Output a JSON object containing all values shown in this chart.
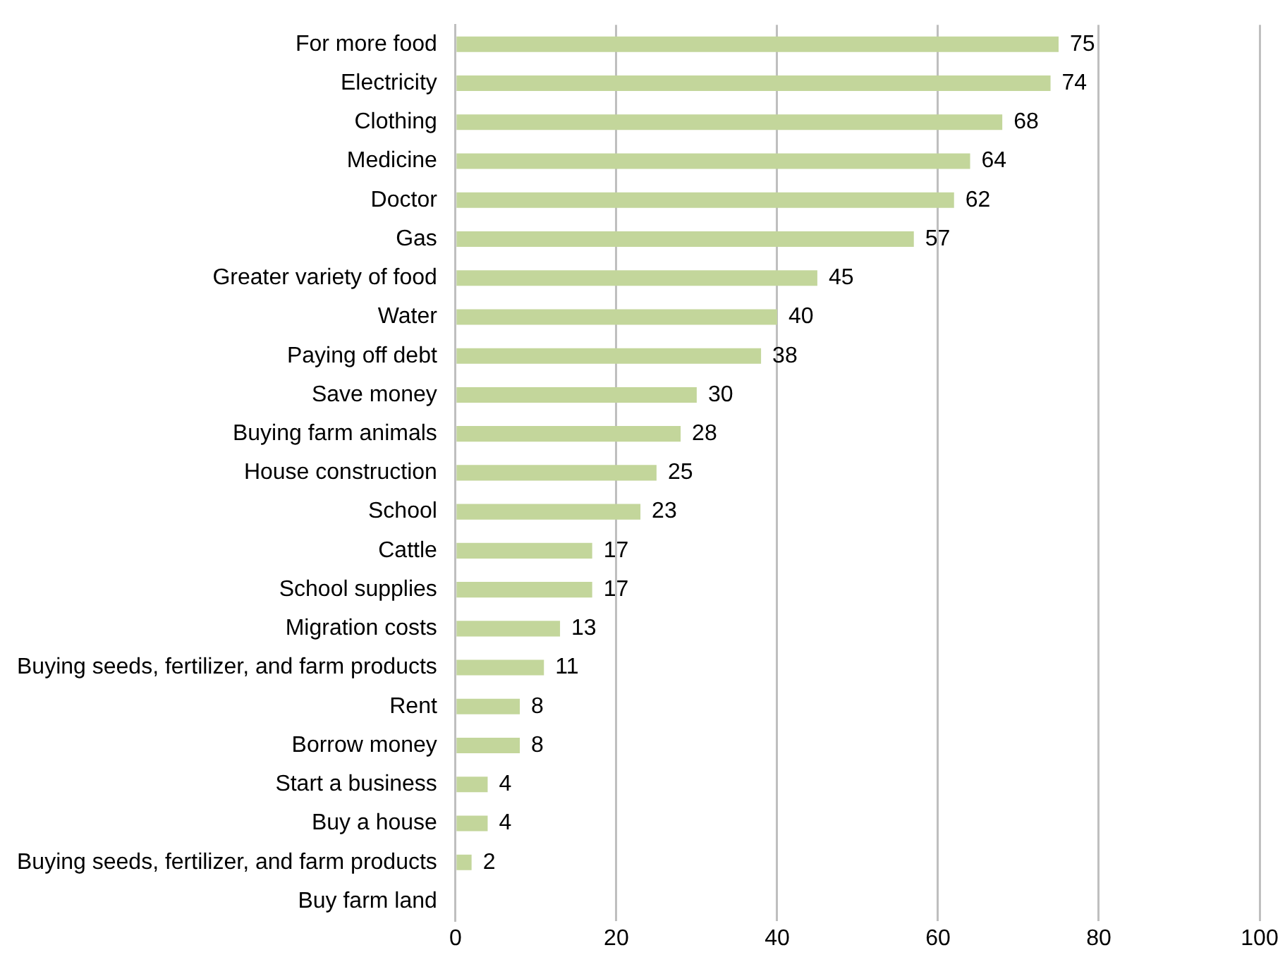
{
  "chart_data": {
    "type": "bar",
    "orientation": "horizontal",
    "categories": [
      "For more food",
      "Electricity",
      "Clothing",
      "Medicine",
      "Doctor",
      "Gas",
      "Greater variety of food",
      "Water",
      "Paying off debt",
      "Save money",
      "Buying farm animals",
      "House construction",
      "School",
      "Cattle",
      "School supplies",
      "Migration costs",
      "Buying seeds, fertilizer, and farm products",
      "Rent",
      "Borrow money",
      "Start a business",
      "Buy a house",
      "Buying seeds, fertilizer, and farm products",
      "Buy farm land"
    ],
    "values": [
      75,
      74,
      68,
      64,
      62,
      57,
      45,
      40,
      38,
      30,
      28,
      25,
      23,
      17,
      17,
      13,
      11,
      8,
      8,
      4,
      4,
      2,
      null
    ],
    "color": "#c3d69b",
    "xlim": [
      0,
      100
    ],
    "xticks": [
      0,
      20,
      40,
      60,
      80,
      100
    ],
    "grid": "x",
    "data_labels": true,
    "legend": false
  }
}
